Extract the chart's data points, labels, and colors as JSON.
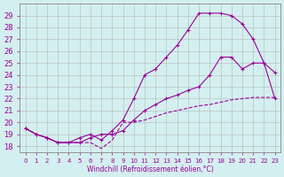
{
  "xlabel": "Windchill (Refroidissement éolien,°C)",
  "background_color": "#d4efef",
  "grid_color": "#aaaaaa",
  "line_color": "#990099",
  "xlim_min": -0.5,
  "xlim_max": 23.5,
  "ylim_min": 17.5,
  "ylim_max": 30.0,
  "yticks": [
    18,
    19,
    20,
    21,
    22,
    23,
    24,
    25,
    26,
    27,
    28,
    29
  ],
  "xticks": [
    0,
    1,
    2,
    3,
    4,
    5,
    6,
    7,
    8,
    9,
    10,
    11,
    12,
    13,
    14,
    15,
    16,
    17,
    18,
    19,
    20,
    21,
    22,
    23
  ],
  "series1_x": [
    0,
    1,
    2,
    3,
    4,
    5,
    6,
    7,
    8,
    9,
    10,
    11,
    12,
    13,
    14,
    15,
    16,
    17,
    18,
    19,
    20,
    21,
    22,
    23
  ],
  "series1_y": [
    19.5,
    19.0,
    18.7,
    18.3,
    18.3,
    18.3,
    18.3,
    17.8,
    18.5,
    20.0,
    20.0,
    20.2,
    20.5,
    20.8,
    21.0,
    21.2,
    21.4,
    21.5,
    21.7,
    21.9,
    22.0,
    22.1,
    22.1,
    22.1
  ],
  "series2_x": [
    0,
    1,
    2,
    3,
    4,
    5,
    6,
    7,
    8,
    9,
    10,
    11,
    12,
    13,
    14,
    15,
    16,
    17,
    18,
    19,
    20,
    21,
    22,
    23
  ],
  "series2_y": [
    19.5,
    19.0,
    18.7,
    18.3,
    18.3,
    18.3,
    18.7,
    19.0,
    19.0,
    19.3,
    20.2,
    21.0,
    21.5,
    22.0,
    22.3,
    22.7,
    23.0,
    24.0,
    25.5,
    25.5,
    24.5,
    25.0,
    25.0,
    22.0
  ],
  "series3_x": [
    0,
    1,
    2,
    3,
    4,
    5,
    6,
    7,
    8,
    9,
    10,
    11,
    12,
    13,
    14,
    15,
    16,
    17,
    18,
    19,
    20,
    21,
    22,
    23
  ],
  "series3_y": [
    19.5,
    19.0,
    18.7,
    18.3,
    18.3,
    18.7,
    19.0,
    18.5,
    19.3,
    20.2,
    22.0,
    24.0,
    24.5,
    25.5,
    26.5,
    27.8,
    29.2,
    29.2,
    29.2,
    29.0,
    28.3,
    27.0,
    25.0,
    24.2
  ]
}
